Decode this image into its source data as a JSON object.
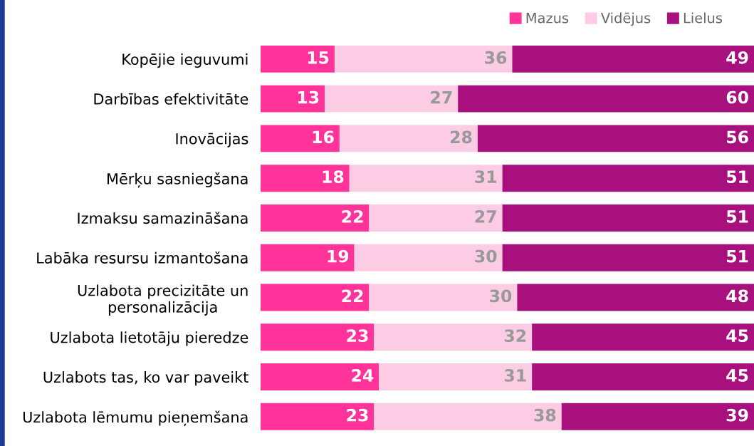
{
  "chart_data": {
    "type": "bar",
    "orientation": "horizontal",
    "stacked": true,
    "data_labels": true,
    "legend": "top right",
    "grid": false,
    "tick_labels": "y",
    "xlim": [
      0,
      100
    ],
    "categories": [
      "Kopējie ieguvumi",
      "Darbības efektivitāte",
      "Inovācijas",
      "Mērķu sasniegšana",
      "Izmaksu samazināšana",
      "Labāka resursu izmantošana",
      "Uzlabota precizitāte un\npersonalizācija",
      "Uzlabota lietotāju pieredze",
      "Uzlabots tas, ko var paveikt",
      "Uzlabota lēmumu pieņemšana"
    ],
    "series": [
      {
        "name": "Mazus",
        "color": "#ff3399",
        "values": [
          15,
          13,
          16,
          18,
          22,
          19,
          22,
          23,
          24,
          23
        ]
      },
      {
        "name": "Vidējus",
        "color": "#fbcce4",
        "values": [
          36,
          27,
          28,
          31,
          27,
          30,
          30,
          32,
          31,
          38
        ]
      },
      {
        "name": "Lielus",
        "color": "#a8107e",
        "values": [
          49,
          60,
          56,
          51,
          51,
          51,
          48,
          45,
          45,
          39
        ]
      }
    ]
  }
}
